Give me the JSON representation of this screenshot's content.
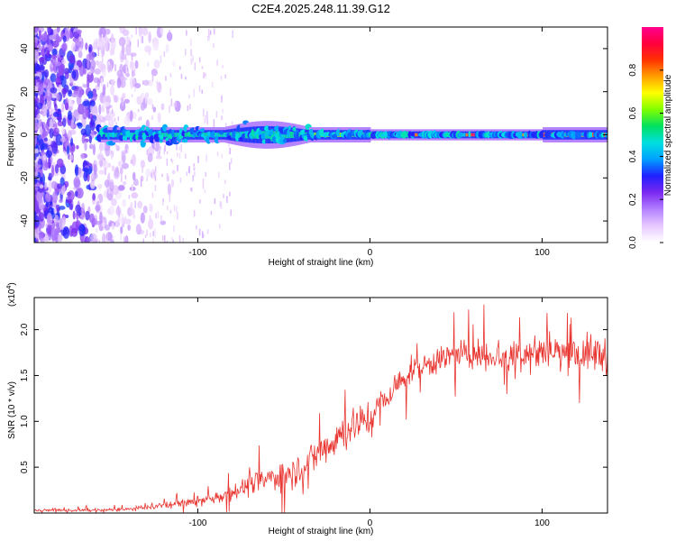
{
  "title": "C2E4.2025.248.11.39.G12",
  "chart_data": [
    {
      "type": "heatmap",
      "title": "C2E4.2025.248.11.39.G12",
      "xlabel": "Height of straight line (km)",
      "ylabel": "Frequency (Hz)",
      "xlim": [
        -195,
        138
      ],
      "ylim": [
        -50,
        50
      ],
      "xticks": [
        -100,
        0,
        100
      ],
      "xtick_labels": [
        "-100",
        "0",
        "100"
      ],
      "yticks": [
        -40,
        -20,
        0,
        20,
        40
      ],
      "ytick_labels": [
        "-40",
        "-20",
        "0",
        "20",
        "40"
      ],
      "band": {
        "center_hz": 0,
        "half_width_hz": 2,
        "x_start_km": -158,
        "x_end_km": 138
      },
      "colorbar": {
        "label": "Normalized spectral amplitude",
        "range": [
          0,
          1
        ],
        "ticks": [
          0.0,
          0.2,
          0.4,
          0.6,
          0.8
        ],
        "tick_labels": [
          "0.0",
          "0.2",
          "0.4",
          "0.6",
          "0.8"
        ],
        "colors": [
          "#ffffff",
          "#e6c8ff",
          "#b380ff",
          "#7a28f0",
          "#2020ff",
          "#00a0ff",
          "#00e0e0",
          "#00e060",
          "#80ff00",
          "#ffff00",
          "#ffa000",
          "#ff3000",
          "#ff0040",
          "#ff0090"
        ]
      }
    },
    {
      "type": "line",
      "xlabel": "Height of straight line (km)",
      "ylabel": "SNR (10 * v/v)",
      "scale_label": "(x10",
      "scale_exponent": "4",
      "xlim": [
        -195,
        138
      ],
      "ylim": [
        0,
        23500
      ],
      "xticks": [
        -100,
        0,
        100
      ],
      "xtick_labels": [
        "-100",
        "0",
        "100"
      ],
      "yticks": [
        5000,
        10000,
        15000,
        20000
      ],
      "ytick_labels": [
        "0.5",
        "1.0",
        "1.5",
        "2.0"
      ],
      "series_color": "#e8332e",
      "trend": {
        "x": [
          -195,
          -160,
          -140,
          -120,
          -100,
          -85,
          -70,
          -55,
          -40,
          -30,
          -20,
          -10,
          0,
          10,
          20,
          30,
          45,
          60,
          80,
          100,
          120,
          138
        ],
        "y": [
          300,
          300,
          400,
          800,
          1200,
          2000,
          3000,
          4000,
          5000,
          6500,
          8200,
          9500,
          10500,
          12500,
          15000,
          16000,
          17000,
          17300,
          17200,
          17600,
          17400,
          17300
        ]
      },
      "noise_amplitude": {
        "x": [
          -195,
          -150,
          -110,
          -90,
          -60,
          -40,
          -20,
          0,
          20,
          50,
          80,
          110,
          138
        ],
        "y": [
          150,
          200,
          500,
          900,
          1700,
          2300,
          2700,
          2500,
          1800,
          2000,
          2400,
          2600,
          2600
        ]
      }
    }
  ]
}
